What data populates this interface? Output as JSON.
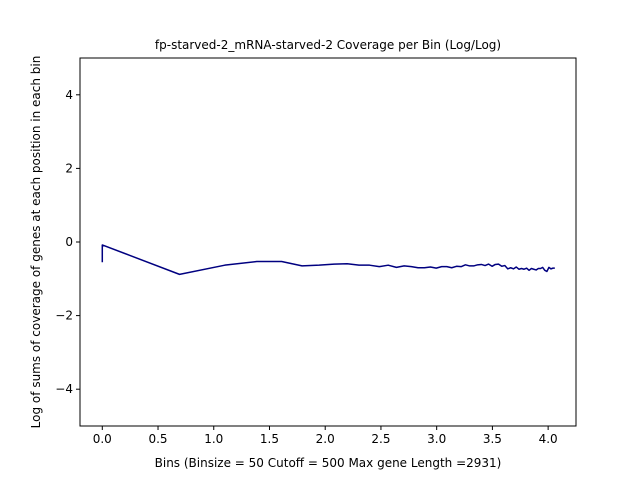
{
  "chart_data": {
    "type": "line",
    "title": "fp-starved-2_mRNA-starved-2 Coverage per Bin (Log/Log)",
    "xlabel": "Bins  (Binsize = 50 Cutoff = 500 Max gene Length =2931)",
    "ylabel": "Log of sums of coverage of genes at each position in each bin",
    "xlim": [
      -0.2,
      4.25
    ],
    "ylim": [
      -5,
      5
    ],
    "x_ticks": [
      0.0,
      0.5,
      1.0,
      1.5,
      2.0,
      2.5,
      3.0,
      3.5,
      4.0
    ],
    "x_tick_labels": [
      "0.0",
      "0.5",
      "1.0",
      "1.5",
      "2.0",
      "2.5",
      "3.0",
      "3.5",
      "4.0"
    ],
    "y_ticks": [
      -4,
      -2,
      0,
      2,
      4
    ],
    "y_tick_labels": [
      "−4",
      "−2",
      "0",
      "2",
      "4"
    ],
    "grid": false,
    "line_color": "#000080",
    "series": [
      {
        "x": [
          0.0,
          0.0,
          0.693,
          1.099,
          1.386,
          1.609,
          1.792,
          1.946,
          2.079,
          2.197,
          2.303,
          2.398,
          2.485,
          2.565,
          2.639,
          2.708,
          2.773,
          2.833,
          2.89,
          2.944,
          2.996,
          3.045,
          3.091,
          3.135,
          3.178,
          3.219,
          3.258,
          3.296,
          3.332,
          3.367,
          3.401,
          3.434,
          3.466,
          3.497,
          3.526,
          3.555,
          3.584,
          3.611,
          3.638,
          3.664,
          3.689,
          3.714,
          3.738,
          3.761,
          3.784,
          3.807,
          3.829,
          3.85,
          3.871,
          3.892,
          3.912,
          3.932,
          3.951,
          3.97,
          3.989,
          4.007,
          4.025,
          4.043,
          4.06
        ],
        "y": [
          -0.55,
          -0.08,
          -0.88,
          -0.63,
          -0.53,
          -0.53,
          -0.65,
          -0.63,
          -0.6,
          -0.59,
          -0.63,
          -0.63,
          -0.67,
          -0.63,
          -0.69,
          -0.65,
          -0.67,
          -0.7,
          -0.7,
          -0.68,
          -0.71,
          -0.67,
          -0.67,
          -0.7,
          -0.66,
          -0.67,
          -0.62,
          -0.65,
          -0.65,
          -0.62,
          -0.61,
          -0.64,
          -0.6,
          -0.66,
          -0.61,
          -0.6,
          -0.66,
          -0.64,
          -0.73,
          -0.7,
          -0.73,
          -0.68,
          -0.74,
          -0.72,
          -0.74,
          -0.71,
          -0.77,
          -0.72,
          -0.74,
          -0.76,
          -0.72,
          -0.72,
          -0.69,
          -0.77,
          -0.8,
          -0.69,
          -0.73,
          -0.71,
          -0.71
        ]
      }
    ]
  }
}
